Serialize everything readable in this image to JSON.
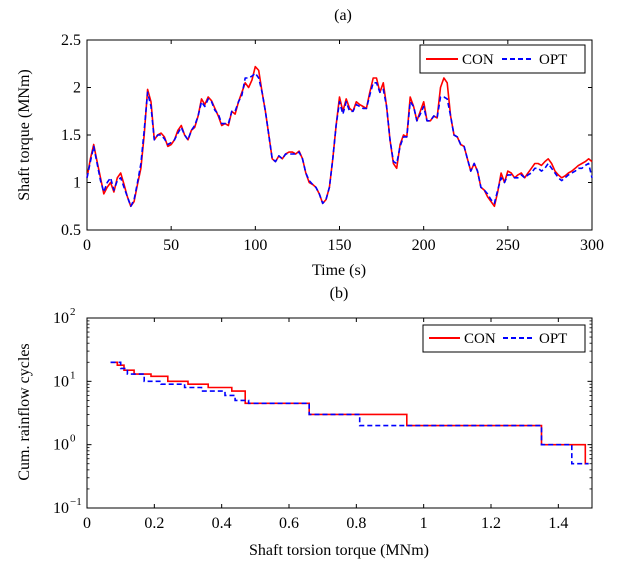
{
  "chart_data": [
    {
      "type": "line",
      "title": "(a)",
      "xlabel": "Time (s)",
      "ylabel": "Shaft torque (MNm)",
      "xlim": [
        0,
        300
      ],
      "ylim": [
        0.5,
        2.5
      ],
      "xticks": [
        0,
        50,
        100,
        150,
        200,
        250,
        300
      ],
      "yticks": [
        0.5,
        1,
        1.5,
        2,
        2.5
      ],
      "tick_labels_x": [
        "0",
        "50",
        "100",
        "150",
        "200",
        "250",
        "300"
      ],
      "tick_labels_y": [
        "0.5",
        "1",
        "1.5",
        "2",
        "2.5"
      ],
      "grid": false,
      "legend_position": "top-right",
      "series": [
        {
          "name": "CON",
          "color": "#ff0000",
          "style": "solid",
          "x": [
            0,
            2,
            4,
            6,
            8,
            10,
            12,
            14,
            16,
            18,
            20,
            22,
            24,
            26,
            28,
            30,
            32,
            34,
            36,
            38,
            40,
            42,
            44,
            46,
            48,
            50,
            52,
            54,
            56,
            58,
            60,
            62,
            64,
            66,
            68,
            70,
            72,
            74,
            76,
            78,
            80,
            82,
            84,
            86,
            88,
            90,
            92,
            94,
            96,
            98,
            100,
            102,
            104,
            106,
            108,
            110,
            112,
            114,
            116,
            118,
            120,
            122,
            124,
            126,
            128,
            130,
            132,
            134,
            136,
            138,
            140,
            142,
            144,
            146,
            148,
            150,
            152,
            154,
            156,
            158,
            160,
            162,
            164,
            166,
            168,
            170,
            172,
            174,
            176,
            178,
            180,
            182,
            184,
            186,
            188,
            190,
            192,
            194,
            196,
            198,
            200,
            202,
            204,
            206,
            208,
            210,
            212,
            214,
            216,
            218,
            220,
            222,
            224,
            226,
            228,
            230,
            232,
            234,
            236,
            238,
            240,
            242,
            244,
            246,
            248,
            250,
            252,
            254,
            256,
            258,
            260,
            262,
            264,
            266,
            268,
            270,
            272,
            274,
            276,
            278,
            280,
            282,
            284,
            286,
            288,
            290,
            292,
            294,
            296,
            298,
            300
          ],
          "y": [
            1.05,
            1.25,
            1.4,
            1.22,
            1.05,
            0.88,
            0.95,
            1.0,
            0.9,
            1.05,
            1.1,
            0.98,
            0.85,
            0.75,
            0.8,
            0.98,
            1.15,
            1.5,
            1.98,
            1.85,
            1.45,
            1.5,
            1.52,
            1.48,
            1.38,
            1.4,
            1.45,
            1.55,
            1.6,
            1.5,
            1.45,
            1.55,
            1.58,
            1.7,
            1.88,
            1.82,
            1.9,
            1.86,
            1.78,
            1.7,
            1.6,
            1.62,
            1.6,
            1.75,
            1.72,
            1.85,
            1.95,
            2.05,
            2.0,
            2.08,
            2.22,
            2.18,
            1.95,
            1.75,
            1.5,
            1.25,
            1.22,
            1.28,
            1.25,
            1.3,
            1.32,
            1.32,
            1.3,
            1.33,
            1.25,
            1.1,
            1.0,
            0.98,
            0.95,
            0.88,
            0.78,
            0.82,
            0.95,
            1.25,
            1.6,
            1.9,
            1.75,
            1.88,
            1.78,
            1.75,
            1.85,
            1.82,
            1.8,
            1.78,
            1.95,
            2.1,
            2.1,
            1.95,
            2.05,
            1.8,
            1.45,
            1.2,
            1.15,
            1.4,
            1.5,
            1.48,
            1.9,
            1.8,
            1.65,
            1.75,
            1.85,
            1.65,
            1.65,
            1.7,
            1.68,
            2.0,
            2.1,
            2.05,
            1.7,
            1.5,
            1.48,
            1.4,
            1.38,
            1.25,
            1.12,
            1.2,
            1.12,
            0.95,
            0.92,
            0.85,
            0.8,
            0.75,
            0.9,
            1.1,
            1.0,
            1.12,
            1.1,
            1.05,
            1.08,
            1.1,
            1.05,
            1.1,
            1.15,
            1.2,
            1.2,
            1.18,
            1.22,
            1.25,
            1.2,
            1.12,
            1.08,
            1.05,
            1.07,
            1.1,
            1.12,
            1.15,
            1.18,
            1.2,
            1.22,
            1.25,
            1.22
          ]
        },
        {
          "name": "OPT",
          "color": "#0000ff",
          "style": "dashed",
          "x": [
            0,
            2,
            4,
            6,
            8,
            10,
            12,
            14,
            16,
            18,
            20,
            22,
            24,
            26,
            28,
            30,
            32,
            34,
            36,
            38,
            40,
            42,
            44,
            46,
            48,
            50,
            52,
            54,
            56,
            58,
            60,
            62,
            64,
            66,
            68,
            70,
            72,
            74,
            76,
            78,
            80,
            82,
            84,
            86,
            88,
            90,
            92,
            94,
            96,
            98,
            100,
            102,
            104,
            106,
            108,
            110,
            112,
            114,
            116,
            118,
            120,
            122,
            124,
            126,
            128,
            130,
            132,
            134,
            136,
            138,
            140,
            142,
            144,
            146,
            148,
            150,
            152,
            154,
            156,
            158,
            160,
            162,
            164,
            166,
            168,
            170,
            172,
            174,
            176,
            178,
            180,
            182,
            184,
            186,
            188,
            190,
            192,
            194,
            196,
            198,
            200,
            202,
            204,
            206,
            208,
            210,
            212,
            214,
            216,
            218,
            220,
            222,
            224,
            226,
            228,
            230,
            232,
            234,
            236,
            238,
            240,
            242,
            244,
            246,
            248,
            250,
            252,
            254,
            256,
            258,
            260,
            262,
            264,
            266,
            268,
            270,
            272,
            274,
            276,
            278,
            280,
            282,
            284,
            286,
            288,
            290,
            292,
            294,
            296,
            298,
            300
          ],
          "y": [
            1.05,
            1.22,
            1.38,
            1.2,
            1.02,
            0.9,
            1.0,
            1.05,
            0.92,
            1.02,
            1.05,
            0.95,
            0.85,
            0.75,
            0.82,
            1.0,
            1.2,
            1.55,
            1.95,
            1.8,
            1.45,
            1.5,
            1.5,
            1.46,
            1.4,
            1.42,
            1.45,
            1.52,
            1.58,
            1.5,
            1.45,
            1.55,
            1.6,
            1.7,
            1.85,
            1.8,
            1.88,
            1.85,
            1.76,
            1.72,
            1.62,
            1.62,
            1.62,
            1.75,
            1.75,
            1.85,
            1.92,
            2.1,
            2.1,
            2.12,
            2.15,
            2.1,
            1.95,
            1.75,
            1.5,
            1.25,
            1.22,
            1.28,
            1.25,
            1.3,
            1.3,
            1.3,
            1.3,
            1.32,
            1.25,
            1.1,
            1.02,
            0.98,
            0.95,
            0.88,
            0.78,
            0.82,
            0.95,
            1.25,
            1.6,
            1.85,
            1.72,
            1.85,
            1.75,
            1.75,
            1.82,
            1.8,
            1.78,
            1.78,
            1.92,
            2.05,
            2.05,
            1.95,
            1.98,
            1.8,
            1.45,
            1.22,
            1.2,
            1.38,
            1.48,
            1.48,
            1.85,
            1.8,
            1.65,
            1.72,
            1.8,
            1.65,
            1.65,
            1.7,
            1.68,
            1.9,
            1.9,
            1.88,
            1.7,
            1.5,
            1.48,
            1.4,
            1.38,
            1.25,
            1.12,
            1.2,
            1.12,
            0.95,
            0.92,
            0.88,
            0.82,
            0.78,
            0.92,
            1.05,
            1.0,
            1.08,
            1.08,
            1.05,
            1.05,
            1.08,
            1.05,
            1.08,
            1.1,
            1.15,
            1.15,
            1.12,
            1.15,
            1.2,
            1.15,
            1.1,
            1.05,
            1.02,
            1.05,
            1.08,
            1.1,
            1.12,
            1.15,
            1.15,
            1.18,
            1.2,
            1.05
          ]
        }
      ]
    },
    {
      "type": "line",
      "title": "(b)",
      "xlabel": "Shaft torsion torque (MNm)",
      "ylabel": "Cum. rainflow cycles",
      "xlim": [
        0,
        1.5
      ],
      "ylim": [
        0.1,
        100
      ],
      "yscale": "log",
      "xticks": [
        0,
        0.2,
        0.4,
        0.6,
        0.8,
        1,
        1.2,
        1.4
      ],
      "yticks": [
        0.1,
        1,
        10,
        100
      ],
      "tick_labels_x": [
        "0",
        "0.2",
        "0.4",
        "0.6",
        "0.8",
        "1",
        "1.2",
        "1.4"
      ],
      "tick_labels_y_base": [
        "10",
        "10",
        "10",
        "10"
      ],
      "tick_labels_y_exp": [
        "−1",
        "0",
        "1",
        "2"
      ],
      "grid": false,
      "legend_position": "top-right",
      "series": [
        {
          "name": "CON",
          "color": "#ff0000",
          "style": "solid",
          "step_x": [
            0.07,
            0.09,
            0.11,
            0.14,
            0.19,
            0.24,
            0.3,
            0.36,
            0.43,
            0.47,
            0.66,
            0.95,
            1.35,
            1.48,
            1.49
          ],
          "step_y": [
            20,
            18,
            15,
            13,
            12,
            10,
            9,
            8,
            7,
            4.5,
            3,
            2,
            1,
            0.5
          ]
        },
        {
          "name": "OPT",
          "color": "#0000ff",
          "style": "dashed",
          "step_x": [
            0.07,
            0.1,
            0.12,
            0.17,
            0.22,
            0.29,
            0.34,
            0.41,
            0.44,
            0.48,
            0.66,
            0.81,
            1.35,
            1.44,
            1.49
          ],
          "step_y": [
            20,
            16,
            13,
            10,
            9,
            8,
            7,
            6,
            5,
            4.5,
            3,
            2,
            1,
            0.5
          ]
        }
      ]
    }
  ]
}
